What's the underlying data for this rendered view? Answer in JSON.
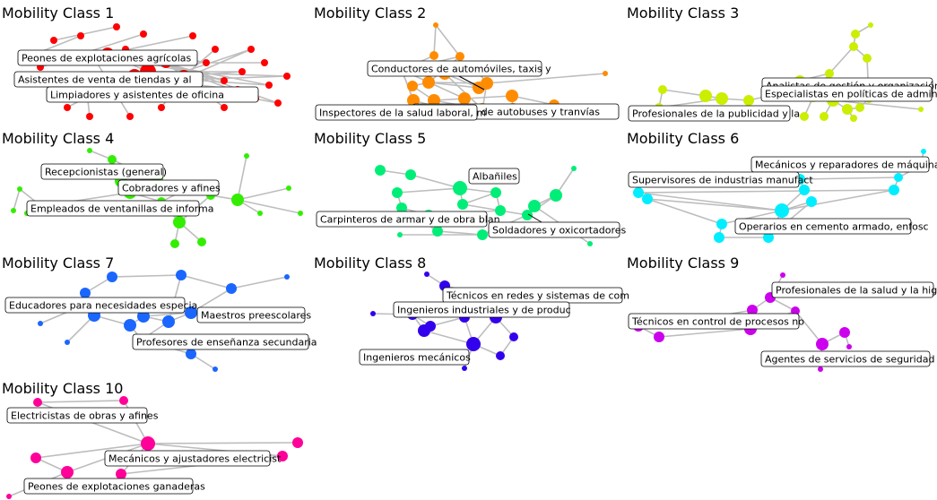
{
  "panels": [
    {
      "title": "Mobility Class  1",
      "color": "#ff0000",
      "labels": [
        "Peones de explotaciones agrícolas",
        "Asistentes de venta de tiendas y al",
        "Limpiadores y asistentes de oficina"
      ]
    },
    {
      "title": "Mobility Class  2",
      "color": "#ff8c00",
      "labels": [
        "Conductores de automóviles, taxis y",
        "Conductores de autobuses y tranvías",
        "Inspectores de la salud laboral,  m"
      ]
    },
    {
      "title": "Mobility Class  3",
      "color": "#ccee00",
      "labels": [
        "Analistas de gestión y organización",
        "Especialistas en políticas de admin",
        "Profesionales de la publicidad y la"
      ]
    },
    {
      "title": "Mobility Class  4",
      "color": "#33ee00",
      "labels": [
        "Recepcionistas (general)",
        "Cobradores y afines",
        "Empleados de ventanillas de informa"
      ]
    },
    {
      "title": "Mobility Class  5",
      "color": "#00ee77",
      "labels": [
        "Albañiles",
        "Carpinteros de armar y de obra blan",
        "Soldadores y oxicortadores"
      ]
    },
    {
      "title": "Mobility Class  6",
      "color": "#00eeff",
      "labels": [
        "Mecánicos y reparadores de máquinas",
        "Supervisores de industrias manufact",
        "Operarios en cemento armado, enfosc"
      ]
    },
    {
      "title": "Mobility Class  7",
      "color": "#1a66ff",
      "labels": [
        "Educadores para necesidades especia",
        "Maestros preescolares",
        "Profesores de enseñanza secundaria"
      ]
    },
    {
      "title": "Mobility Class  8",
      "color": "#3300ee",
      "labels": [
        "Técnicos en redes y sistemas de com",
        "Ingenieros industriales y de produc",
        "Ingenieros mecánicos"
      ]
    },
    {
      "title": "Mobility Class  9",
      "color": "#cc00ee",
      "labels": [
        "Profesionales de la salud y la higi",
        "Técnicos en control de procesos no",
        "Agentes de servicios de seguridad s"
      ]
    },
    {
      "title": "Mobility Class  10",
      "color": "#ff0099",
      "labels": [
        "Electricistas de obras y afines",
        "Mecánicos y ajustadores electricist",
        "Peones de explotaciones ganaderas"
      ]
    }
  ]
}
